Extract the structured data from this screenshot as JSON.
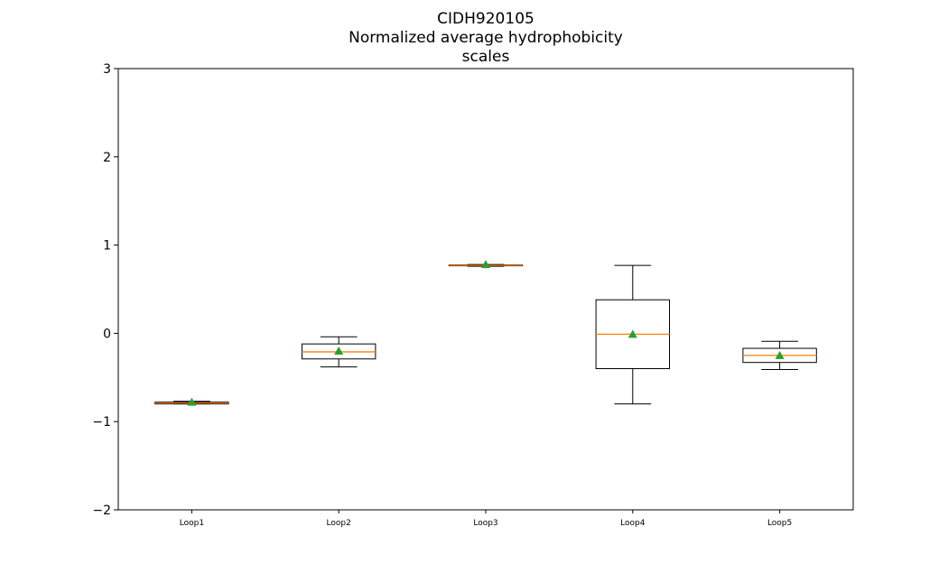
{
  "chart_data": {
    "type": "box",
    "title_lines": [
      "CIDH920105",
      "Normalized average hydrophobicity",
      "scales"
    ],
    "xlabel": "",
    "ylabel": "",
    "ylim": [
      -2,
      3
    ],
    "yticks": [
      -2,
      -1,
      0,
      1,
      2,
      3
    ],
    "ytick_labels": [
      "−2",
      "−1",
      "0",
      "1",
      "2",
      "3"
    ],
    "grid": false,
    "categories": [
      "Loop1",
      "Loop2",
      "Loop3",
      "Loop4",
      "Loop5"
    ],
    "boxes": [
      {
        "whisker_low": -0.8,
        "q1": -0.8,
        "median": -0.79,
        "q3": -0.78,
        "whisker_high": -0.77,
        "mean": -0.78
      },
      {
        "whisker_low": -0.38,
        "q1": -0.29,
        "median": -0.21,
        "q3": -0.12,
        "whisker_high": -0.04,
        "mean": -0.2
      },
      {
        "whisker_low": 0.76,
        "q1": 0.765,
        "median": 0.77,
        "q3": 0.775,
        "whisker_high": 0.78,
        "mean": 0.78
      },
      {
        "whisker_low": -0.8,
        "q1": -0.4,
        "median": -0.01,
        "q3": 0.38,
        "whisker_high": 0.77,
        "mean": -0.01
      },
      {
        "whisker_low": -0.41,
        "q1": -0.33,
        "median": -0.25,
        "q3": -0.17,
        "whisker_high": -0.09,
        "mean": -0.25
      }
    ],
    "colors": {
      "box": "#000000",
      "median": "#ff7f0e",
      "mean_marker": "#2ca02c",
      "axes": "#000000"
    }
  }
}
